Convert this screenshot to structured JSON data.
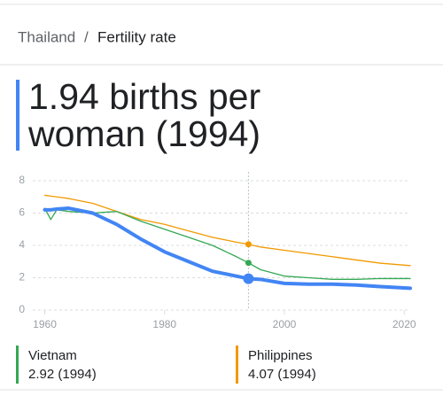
{
  "breadcrumb": {
    "country": "Thailand",
    "separator": "/",
    "topic": "Fertility rate"
  },
  "headline": "1.94 births per woman (1994)",
  "chart_data": {
    "type": "line",
    "x": [
      1960,
      1961,
      1962,
      1964,
      1968,
      1972,
      1976,
      1980,
      1984,
      1988,
      1992,
      1994,
      1996,
      2000,
      2004,
      2008,
      2012,
      2016,
      2021
    ],
    "series": [
      {
        "name": "Thailand",
        "color": "#4285f4",
        "values": [
          6.2,
          6.2,
          6.25,
          6.3,
          6.0,
          5.3,
          4.4,
          3.6,
          3.0,
          2.4,
          2.1,
          1.94,
          1.9,
          1.65,
          1.6,
          1.6,
          1.55,
          1.45,
          1.35
        ]
      },
      {
        "name": "Vietnam",
        "color": "#34a853",
        "values": [
          6.3,
          5.6,
          6.2,
          6.1,
          6.0,
          6.1,
          5.5,
          5.0,
          4.5,
          4.0,
          3.3,
          2.92,
          2.5,
          2.1,
          2.0,
          1.9,
          1.9,
          1.95,
          1.95
        ]
      },
      {
        "name": "Philippines",
        "color": "#f29900",
        "values": [
          7.1,
          7.05,
          7.0,
          6.9,
          6.6,
          6.1,
          5.6,
          5.3,
          4.9,
          4.5,
          4.2,
          4.07,
          3.9,
          3.7,
          3.5,
          3.3,
          3.1,
          2.9,
          2.75
        ]
      }
    ],
    "highlight_index": 11,
    "xlim": [
      1958,
      2021
    ],
    "xticks": [
      1960,
      1980,
      2000,
      2020
    ],
    "ylim": [
      0,
      8
    ],
    "yticks": [
      0,
      2,
      4,
      6,
      8
    ],
    "grid": true,
    "legend_values": [
      "2.92 (1994)",
      "4.07 (1994)"
    ]
  }
}
